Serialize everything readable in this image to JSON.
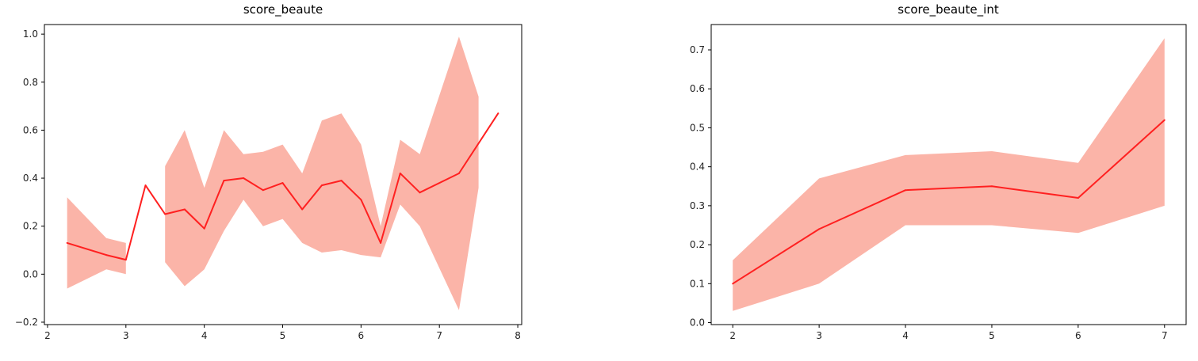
{
  "chart_data": [
    {
      "type": "line",
      "title": "score_beaute",
      "xlabel": "",
      "ylabel": "",
      "xlim": [
        1.96,
        8.05
      ],
      "ylim": [
        -0.21,
        1.04
      ],
      "xticks": [
        2,
        3,
        4,
        5,
        6,
        7,
        8
      ],
      "xtick_labels": [
        "2",
        "3",
        "4",
        "5",
        "6",
        "7",
        "8"
      ],
      "yticks": [
        -0.2,
        0.0,
        0.2,
        0.4,
        0.6,
        0.8,
        1.0
      ],
      "ytick_labels": [
        "−0.2",
        "0.0",
        "0.2",
        "0.4",
        "0.6",
        "0.8",
        "1.0"
      ],
      "grid": false,
      "line_color": "#ff2020",
      "band_color": "#fbb4a8",
      "series": [
        {
          "x": [
            2.25,
            2.75,
            3.0,
            3.25,
            3.5,
            3.75,
            4.0,
            4.25,
            4.5,
            4.75,
            5.0,
            5.25,
            5.5,
            5.75,
            6.0,
            6.25,
            6.5,
            6.75,
            7.25,
            7.75
          ],
          "values": [
            0.13,
            0.08,
            0.06,
            0.37,
            0.25,
            0.27,
            0.19,
            0.39,
            0.4,
            0.35,
            0.38,
            0.27,
            0.37,
            0.39,
            0.31,
            0.13,
            0.42,
            0.34,
            0.42,
            0.67
          ]
        }
      ],
      "bands": [
        {
          "x": [
            2.25,
            2.75,
            3.0
          ],
          "lower": [
            -0.06,
            0.02,
            0.0
          ],
          "upper": [
            0.32,
            0.15,
            0.13
          ]
        },
        {
          "x": [
            3.5,
            3.75,
            4.0,
            4.25,
            4.5,
            4.75,
            5.0,
            5.25,
            5.5,
            5.75,
            6.0,
            6.25,
            6.5,
            6.75,
            7.25,
            7.5
          ],
          "lower": [
            0.05,
            -0.05,
            0.02,
            0.18,
            0.31,
            0.2,
            0.23,
            0.13,
            0.09,
            0.1,
            0.08,
            0.07,
            0.29,
            0.2,
            -0.15,
            0.36
          ],
          "upper": [
            0.45,
            0.6,
            0.36,
            0.6,
            0.5,
            0.51,
            0.54,
            0.42,
            0.64,
            0.67,
            0.54,
            0.2,
            0.56,
            0.5,
            0.99,
            0.74
          ]
        }
      ]
    },
    {
      "type": "line",
      "title": "score_beaute_int",
      "xlabel": "",
      "ylabel": "",
      "xlim": [
        1.75,
        7.25
      ],
      "ylim": [
        -0.005,
        0.765
      ],
      "xticks": [
        2,
        3,
        4,
        5,
        6,
        7
      ],
      "xtick_labels": [
        "2",
        "3",
        "4",
        "5",
        "6",
        "7"
      ],
      "yticks": [
        0.0,
        0.1,
        0.2,
        0.3,
        0.4,
        0.5,
        0.6,
        0.7
      ],
      "ytick_labels": [
        "0.0",
        "0.1",
        "0.2",
        "0.3",
        "0.4",
        "0.5",
        "0.6",
        "0.7"
      ],
      "grid": false,
      "line_color": "#ff2020",
      "band_color": "#fbb4a8",
      "series": [
        {
          "x": [
            2,
            3,
            4,
            5,
            6,
            7
          ],
          "values": [
            0.1,
            0.24,
            0.34,
            0.35,
            0.32,
            0.52
          ]
        }
      ],
      "bands": [
        {
          "x": [
            2,
            3,
            4,
            5,
            6,
            7
          ],
          "lower": [
            0.03,
            0.1,
            0.25,
            0.25,
            0.23,
            0.3
          ],
          "upper": [
            0.16,
            0.37,
            0.43,
            0.44,
            0.41,
            0.73
          ]
        }
      ]
    }
  ]
}
